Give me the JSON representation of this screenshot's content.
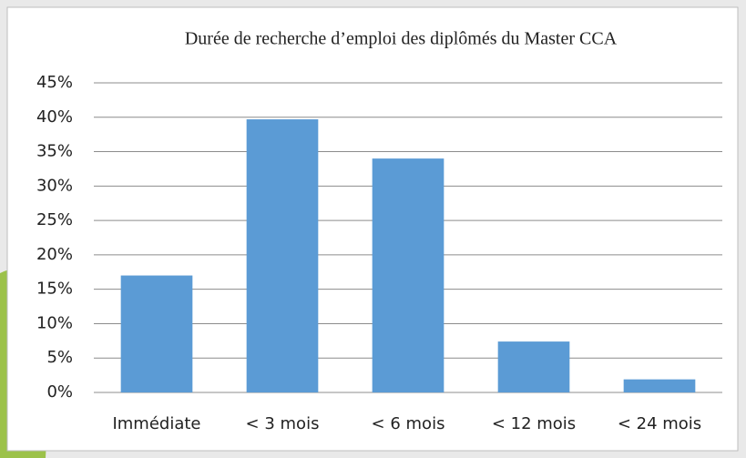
{
  "chart_data": {
    "type": "bar",
    "title": "Durée de recherche d’emploi des diplômés du Master CCA",
    "categories": [
      "Immédiate",
      "< 3 mois",
      "< 6 mois",
      "< 12 mois",
      "< 24 mois"
    ],
    "values": [
      17,
      39.7,
      34,
      7.4,
      1.9
    ],
    "color": "#5b9bd5",
    "ylim": [
      0,
      45
    ],
    "yticks": [
      {
        "value": 0,
        "label": "0%"
      },
      {
        "value": 5,
        "label": "5%"
      },
      {
        "value": 10,
        "label": "10%"
      },
      {
        "value": 15,
        "label": "15%"
      },
      {
        "value": 20,
        "label": "20%"
      },
      {
        "value": 25,
        "label": "25%"
      },
      {
        "value": 30,
        "label": "30%"
      },
      {
        "value": 35,
        "label": "35%"
      },
      {
        "value": 40,
        "label": "40%"
      },
      {
        "value": 45,
        "label": "45%"
      }
    ],
    "grid": true
  }
}
